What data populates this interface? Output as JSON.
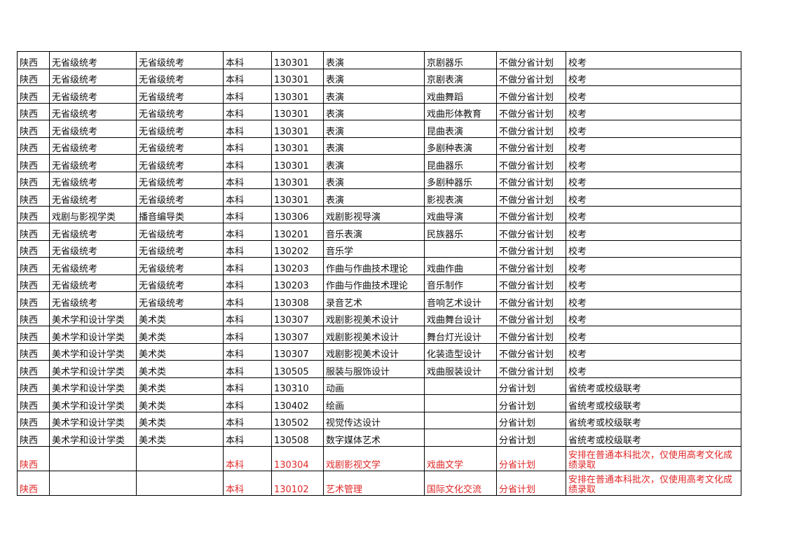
{
  "rows": [
    [
      "陕西",
      "无省级统考",
      "无省级统考",
      "本科",
      "130301",
      "表演",
      "京剧器乐",
      "不做分省计划",
      "校考"
    ],
    [
      "陕西",
      "无省级统考",
      "无省级统考",
      "本科",
      "130301",
      "表演",
      "京剧表演",
      "不做分省计划",
      "校考"
    ],
    [
      "陕西",
      "无省级统考",
      "无省级统考",
      "本科",
      "130301",
      "表演",
      "戏曲舞蹈",
      "不做分省计划",
      "校考"
    ],
    [
      "陕西",
      "无省级统考",
      "无省级统考",
      "本科",
      "130301",
      "表演",
      "戏曲形体教育",
      "不做分省计划",
      "校考"
    ],
    [
      "陕西",
      "无省级统考",
      "无省级统考",
      "本科",
      "130301",
      "表演",
      "昆曲表演",
      "不做分省计划",
      "校考"
    ],
    [
      "陕西",
      "无省级统考",
      "无省级统考",
      "本科",
      "130301",
      "表演",
      "多剧种表演",
      "不做分省计划",
      "校考"
    ],
    [
      "陕西",
      "无省级统考",
      "无省级统考",
      "本科",
      "130301",
      "表演",
      "昆曲器乐",
      "不做分省计划",
      "校考"
    ],
    [
      "陕西",
      "无省级统考",
      "无省级统考",
      "本科",
      "130301",
      "表演",
      "多剧种器乐",
      "不做分省计划",
      "校考"
    ],
    [
      "陕西",
      "无省级统考",
      "无省级统考",
      "本科",
      "130301",
      "表演",
      "影视表演",
      "不做分省计划",
      "校考"
    ],
    [
      "陕西",
      "戏剧与影视学类",
      "播音编导类",
      "本科",
      "130306",
      "戏剧影视导演",
      "戏曲导演",
      "不做分省计划",
      "校考"
    ],
    [
      "陕西",
      "无省级统考",
      "无省级统考",
      "本科",
      "130201",
      "音乐表演",
      "民族器乐",
      "不做分省计划",
      "校考"
    ],
    [
      "陕西",
      "无省级统考",
      "无省级统考",
      "本科",
      "130202",
      "音乐学",
      "",
      "不做分省计划",
      "校考"
    ],
    [
      "陕西",
      "无省级统考",
      "无省级统考",
      "本科",
      "130203",
      "作曲与作曲技术理论",
      "戏曲作曲",
      "不做分省计划",
      "校考"
    ],
    [
      "陕西",
      "无省级统考",
      "无省级统考",
      "本科",
      "130203",
      "作曲与作曲技术理论",
      "音乐制作",
      "不做分省计划",
      "校考"
    ],
    [
      "陕西",
      "无省级统考",
      "无省级统考",
      "本科",
      "130308",
      "录音艺术",
      "音响艺术设计",
      "不做分省计划",
      "校考"
    ],
    [
      "陕西",
      "美术学和设计学类",
      "美术类",
      "本科",
      "130307",
      "戏剧影视美术设计",
      "戏曲舞台设计",
      "不做分省计划",
      "校考"
    ],
    [
      "陕西",
      "美术学和设计学类",
      "美术类",
      "本科",
      "130307",
      "戏剧影视美术设计",
      "舞台灯光设计",
      "不做分省计划",
      "校考"
    ],
    [
      "陕西",
      "美术学和设计学类",
      "美术类",
      "本科",
      "130307",
      "戏剧影视美术设计",
      "化装造型设计",
      "不做分省计划",
      "校考"
    ],
    [
      "陕西",
      "美术学和设计学类",
      "美术类",
      "本科",
      "130505",
      "服装与服饰设计",
      "戏曲服装设计",
      "不做分省计划",
      "校考"
    ],
    [
      "陕西",
      "美术学和设计学类",
      "美术类",
      "本科",
      "130310",
      "动画",
      "",
      "分省计划",
      "省统考或校级联考"
    ],
    [
      "陕西",
      "美术学和设计学类",
      "美术类",
      "本科",
      "130402",
      "绘画",
      "",
      "分省计划",
      "省统考或校级联考"
    ],
    [
      "陕西",
      "美术学和设计学类",
      "美术类",
      "本科",
      "130502",
      "视觉传达设计",
      "",
      "分省计划",
      "省统考或校级联考"
    ],
    [
      "陕西",
      "美术学和设计学类",
      "美术类",
      "本科",
      "130508",
      "数字媒体艺术",
      "",
      "分省计划",
      "省统考或校级联考"
    ]
  ],
  "highlighted_rows": [
    [
      "陕西",
      "",
      "",
      "本科",
      "130304",
      "戏剧影视文学",
      "戏曲文学",
      "分省计划",
      "安排在普通本科批次，仅使用高考文化成绩录取"
    ],
    [
      "陕西",
      "",
      "",
      "本科",
      "130102",
      "艺术管理",
      "国际文化交流",
      "分省计划",
      "安排在普通本科批次，仅使用高考文化成绩录取"
    ]
  ],
  "highlight_color": "#e02828"
}
